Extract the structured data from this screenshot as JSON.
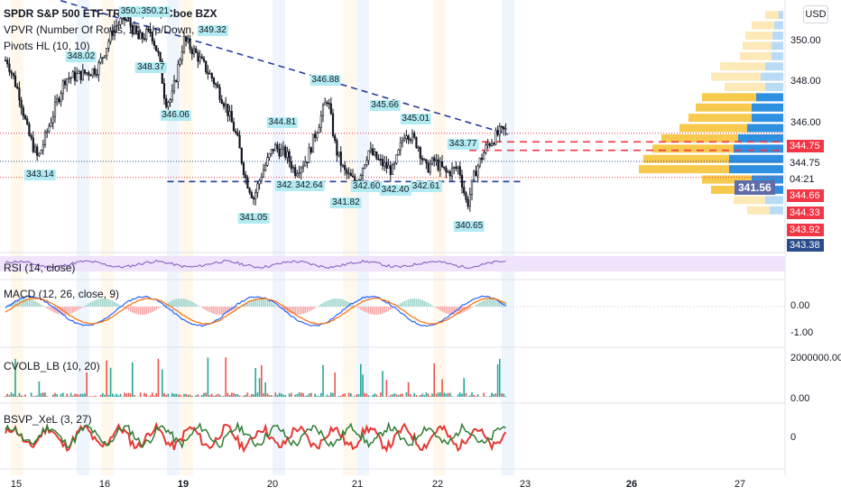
{
  "header": {
    "symbol_title": "SPDR S&P 500 ETF TRUST, 15, Cboe BZX",
    "indicator_vpvr": "VPVR (Number Of Rows, 24, Up/Down, 70)",
    "indicator_pivots": "Pivots HL (10, 10)",
    "currency_button": "USD"
  },
  "panes": {
    "rsi_title": "RSI (14, close)",
    "macd_title": "MACD (12, 26, close, 9)",
    "cvol_title": "CVOLB_LB (10, 20)",
    "bsvp_title": "BSVP_XeL (3, 27)"
  },
  "price_axis": {
    "ticks": [
      "350.00",
      "348.00",
      "346.00"
    ],
    "tags": [
      {
        "value": "344.75",
        "color": "#f23645"
      },
      {
        "value": "344.75",
        "color": "#ffffff",
        "text_color": "#131722"
      },
      {
        "value": "04:21",
        "color": "#ffffff",
        "text_color": "#131722"
      },
      {
        "value": "344.66",
        "color": "#f23645"
      },
      {
        "value": "344.33",
        "color": "#f23645"
      },
      {
        "value": "343.92",
        "color": "#f23645"
      },
      {
        "value": "343.38",
        "color": "#2a4c8c"
      }
    ],
    "poc_label": "341.56"
  },
  "macd_axis": {
    "ticks": [
      "0.00",
      "-1.00"
    ]
  },
  "cvol_axis": {
    "ticks": [
      "2000000.00",
      "0.00"
    ]
  },
  "bsvp_axis": {
    "ticks": [
      "0"
    ]
  },
  "time_axis": {
    "labels": [
      {
        "text": "15",
        "bold": false
      },
      {
        "text": "16",
        "bold": false
      },
      {
        "text": "19",
        "bold": true
      },
      {
        "text": "20",
        "bold": false
      },
      {
        "text": "21",
        "bold": false
      },
      {
        "text": "22",
        "bold": false
      },
      {
        "text": "23",
        "bold": false
      },
      {
        "text": "26",
        "bold": true
      },
      {
        "text": "27",
        "bold": false
      }
    ]
  },
  "chart_data": {
    "type": "candlestick",
    "title": "SPDR S&P 500 ETF TRUST, 15, Cboe BZX",
    "x_labels": [
      "15",
      "16",
      "19",
      "20",
      "21",
      "22",
      "23",
      "26",
      "27"
    ],
    "close_path": [
      {
        "t": 0,
        "p": 348.3
      },
      {
        "t": 0.3,
        "p": 346.6
      },
      {
        "t": 0.5,
        "p": 344.8
      },
      {
        "t": 0.75,
        "p": 343.5
      },
      {
        "t": 1.0,
        "p": 345.0
      },
      {
        "t": 1.4,
        "p": 347.4
      },
      {
        "t": 1.8,
        "p": 347.6
      },
      {
        "t": 2.2,
        "p": 347.9
      },
      {
        "t": 2.6,
        "p": 349.9
      },
      {
        "t": 2.9,
        "p": 350.4
      },
      {
        "t": 3.2,
        "p": 349.3
      },
      {
        "t": 3.5,
        "p": 349.7
      },
      {
        "t": 3.7,
        "p": 348.4
      },
      {
        "t": 3.85,
        "p": 346.3
      },
      {
        "t": 4.0,
        "p": 346.4
      },
      {
        "t": 4.3,
        "p": 349.3
      },
      {
        "t": 4.6,
        "p": 348.6
      },
      {
        "t": 5.0,
        "p": 347.4
      },
      {
        "t": 5.3,
        "p": 346.2
      },
      {
        "t": 5.6,
        "p": 344.5
      },
      {
        "t": 5.8,
        "p": 342.6
      },
      {
        "t": 6.0,
        "p": 341.6
      },
      {
        "t": 6.2,
        "p": 342.8
      },
      {
        "t": 6.5,
        "p": 344.1
      },
      {
        "t": 6.8,
        "p": 343.7
      },
      {
        "t": 7.0,
        "p": 342.9
      },
      {
        "t": 7.3,
        "p": 343.5
      },
      {
        "t": 7.6,
        "p": 345.3
      },
      {
        "t": 7.8,
        "p": 346.5
      },
      {
        "t": 8.0,
        "p": 344.0
      },
      {
        "t": 8.2,
        "p": 342.9
      },
      {
        "t": 8.5,
        "p": 342.3
      },
      {
        "t": 8.8,
        "p": 343.9
      },
      {
        "t": 9.1,
        "p": 343.3
      },
      {
        "t": 9.4,
        "p": 342.9
      },
      {
        "t": 9.7,
        "p": 344.9
      },
      {
        "t": 10.0,
        "p": 344.2
      },
      {
        "t": 10.2,
        "p": 343.0
      },
      {
        "t": 10.4,
        "p": 343.4
      },
      {
        "t": 10.7,
        "p": 342.8
      },
      {
        "t": 11.0,
        "p": 343.1
      },
      {
        "t": 11.2,
        "p": 341.2
      },
      {
        "t": 11.4,
        "p": 342.9
      },
      {
        "t": 11.7,
        "p": 344.2
      },
      {
        "t": 12.0,
        "p": 344.8
      },
      {
        "t": 12.2,
        "p": 344.9
      }
    ],
    "pivot_labels": [
      {
        "t": 0.8,
        "p": 343.14,
        "label": "343.14",
        "pos": "below"
      },
      {
        "t": 1.8,
        "p": 348.02,
        "label": "348.02",
        "pos": "above"
      },
      {
        "t": 3.1,
        "p": 350.21,
        "label": "350.21",
        "pos": "above"
      },
      {
        "t": 3.6,
        "p": 350.21,
        "label": "350.21",
        "pos": "above"
      },
      {
        "t": 3.5,
        "p": 348.37,
        "label": "348.37",
        "pos": "below"
      },
      {
        "t": 4.1,
        "p": 346.06,
        "label": "346.06",
        "pos": "below"
      },
      {
        "t": 5.0,
        "p": 349.32,
        "label": "349.32",
        "pos": "above"
      },
      {
        "t": 6.0,
        "p": 341.05,
        "label": "341.05",
        "pos": "below"
      },
      {
        "t": 6.7,
        "p": 344.81,
        "label": "344.81",
        "pos": "above"
      },
      {
        "t": 6.9,
        "p": 342.62,
        "label": "342.62",
        "pos": "below"
      },
      {
        "t": 7.35,
        "p": 342.64,
        "label": "342.64",
        "pos": "below"
      },
      {
        "t": 7.75,
        "p": 346.88,
        "label": "346.88",
        "pos": "above"
      },
      {
        "t": 8.25,
        "p": 341.82,
        "label": "341.82",
        "pos": "below"
      },
      {
        "t": 8.75,
        "p": 342.6,
        "label": "342.60",
        "pos": "below"
      },
      {
        "t": 9.2,
        "p": 345.66,
        "label": "345.66",
        "pos": "above"
      },
      {
        "t": 9.45,
        "p": 342.4,
        "label": "342.40",
        "pos": "below"
      },
      {
        "t": 9.95,
        "p": 345.01,
        "label": "345.01",
        "pos": "above"
      },
      {
        "t": 10.2,
        "p": 342.61,
        "label": "342.61",
        "pos": "below"
      },
      {
        "t": 11.1,
        "p": 343.77,
        "label": "343.77",
        "pos": "above"
      },
      {
        "t": 11.25,
        "p": 340.65,
        "label": "340.65",
        "pos": "below"
      }
    ],
    "trendlines": [
      {
        "from": {
          "t": 1.3,
          "p": 351.2
        },
        "to": {
          "t": 12.2,
          "p": 344.7
        },
        "color": "#2a3d9a"
      },
      {
        "from": {
          "t": 3.9,
          "p": 342.4
        },
        "to": {
          "t": 12.6,
          "p": 342.4
        },
        "color": "#2a3d9a"
      }
    ],
    "volume_profile_rows": [
      {
        "p": 350.5,
        "up": 0.15,
        "down": 0.05
      },
      {
        "p": 350.0,
        "up": 0.25,
        "down": 0.1
      },
      {
        "p": 349.5,
        "up": 0.3,
        "down": 0.12
      },
      {
        "p": 349.0,
        "up": 0.32,
        "down": 0.13
      },
      {
        "p": 348.5,
        "up": 0.35,
        "down": 0.13
      },
      {
        "p": 348.0,
        "up": 0.5,
        "down": 0.2
      },
      {
        "p": 347.5,
        "up": 0.55,
        "down": 0.25
      },
      {
        "p": 347.0,
        "up": 0.45,
        "down": 0.2
      },
      {
        "p": 346.5,
        "up": 0.6,
        "down": 0.3
      },
      {
        "p": 346.0,
        "up": 0.62,
        "down": 0.35
      },
      {
        "p": 345.5,
        "up": 0.7,
        "down": 0.35
      },
      {
        "p": 345.0,
        "up": 0.75,
        "down": 0.4
      },
      {
        "p": 344.5,
        "up": 0.85,
        "down": 0.5
      },
      {
        "p": 344.0,
        "up": 0.9,
        "down": 0.55
      },
      {
        "p": 343.5,
        "up": 0.95,
        "down": 0.6
      },
      {
        "p": 343.0,
        "up": 1.0,
        "down": 0.6
      },
      {
        "p": 342.5,
        "up": 0.55,
        "down": 0.35
      },
      {
        "p": 342.0,
        "up": 0.5,
        "down": 0.3
      },
      {
        "p": 341.5,
        "up": 0.35,
        "down": 0.2
      },
      {
        "p": 341.0,
        "up": 0.25,
        "down": 0.15
      }
    ],
    "horizontal_levels": [
      {
        "p": 344.75,
        "color": "#f23645",
        "style": "dotted"
      },
      {
        "p": 344.33,
        "color": "#f23645",
        "style": "dashed"
      },
      {
        "p": 343.92,
        "color": "#f23645",
        "style": "dashed"
      },
      {
        "p": 343.38,
        "color": "#2a4c8c",
        "style": "dotted"
      },
      {
        "p": 342.6,
        "color": "#f23645",
        "style": "dotted"
      }
    ],
    "y_range": [
      340,
      351
    ]
  }
}
